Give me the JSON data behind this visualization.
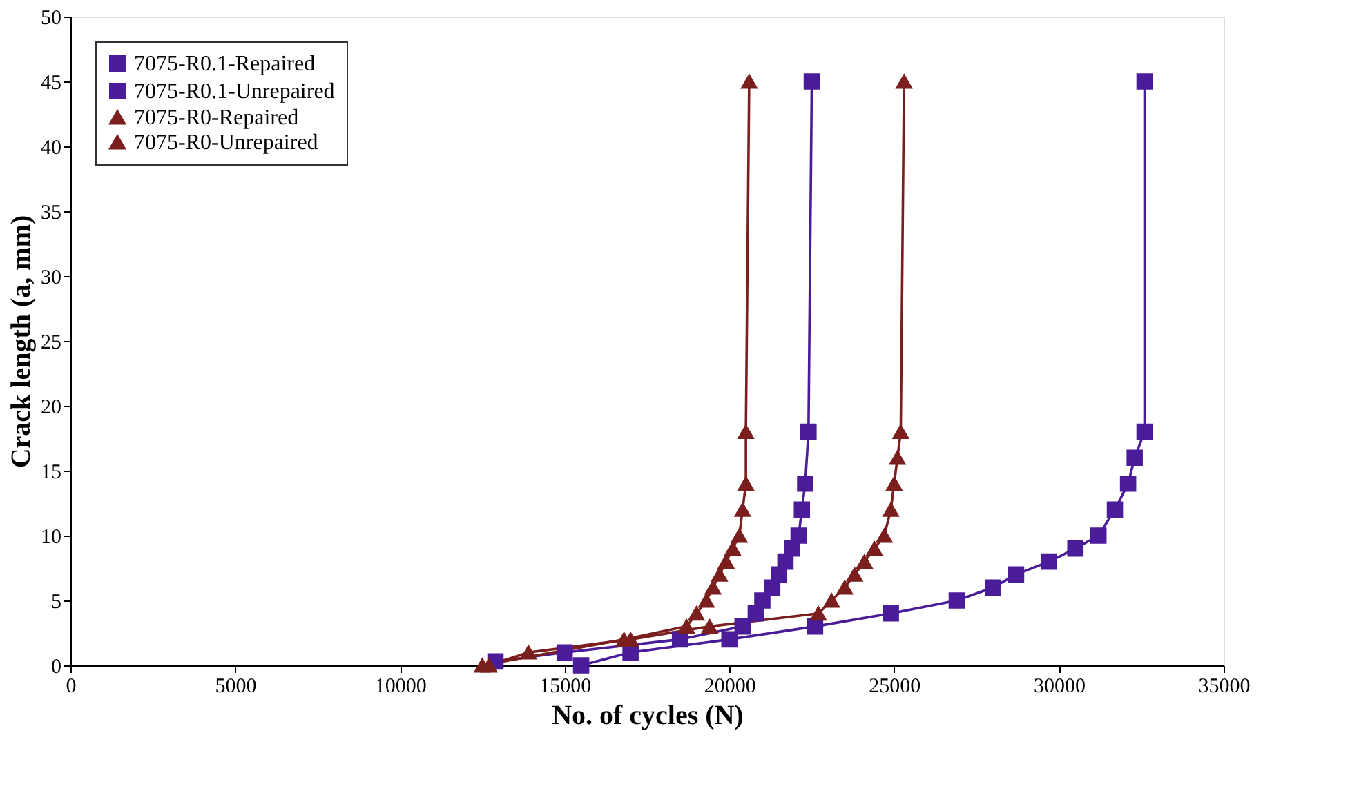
{
  "chart_data": {
    "type": "line",
    "xlabel": "No. of cycles (N)",
    "ylabel": "Crack length (a, mm)",
    "xlim": [
      0,
      35000
    ],
    "xticks": [
      0,
      5000,
      10000,
      15000,
      20000,
      25000,
      30000,
      35000
    ],
    "ylim": [
      0,
      50
    ],
    "yticks": [
      0,
      5,
      10,
      15,
      20,
      25,
      30,
      35,
      40,
      45,
      50
    ],
    "grid": false,
    "legend": "top left",
    "line_style": "solid",
    "series": [
      {
        "name": "7075-R0.1-Repaired",
        "color": "#4b1c9a",
        "marker": "square",
        "x": [
          15500,
          17000,
          20000,
          22600,
          24900,
          26900,
          28000,
          28700,
          29700,
          30500,
          31200,
          31700,
          32100,
          32300,
          32600,
          32600
        ],
        "values": [
          0,
          1,
          2,
          3,
          4,
          5,
          6,
          7,
          8,
          9,
          10,
          12,
          14,
          16,
          18,
          45
        ]
      },
      {
        "name": "7075-R0.1-Unrepaired",
        "color": "#4b1c9a",
        "marker": "square",
        "x": [
          12900,
          15000,
          18500,
          20400,
          20800,
          21000,
          21300,
          21500,
          21700,
          21900,
          22100,
          22200,
          22300,
          22400,
          22500
        ],
        "values": [
          0.3,
          1,
          2,
          3,
          4,
          5,
          6,
          7,
          8,
          9,
          10,
          12,
          14,
          18,
          45
        ]
      },
      {
        "name": "7075-R0-Repaired",
        "color": "#7a1e1e",
        "marker": "triangle",
        "x": [
          12700,
          13900,
          17000,
          19400,
          22700,
          23100,
          23500,
          23800,
          24100,
          24400,
          24700,
          24900,
          25000,
          25100,
          25200,
          25300
        ],
        "values": [
          0,
          1,
          2,
          3,
          4,
          5,
          6,
          7,
          8,
          9,
          10,
          12,
          14,
          16,
          18,
          45
        ]
      },
      {
        "name": "7075-R0-Unrepaired",
        "color": "#7a1e1e",
        "marker": "triangle",
        "x": [
          12500,
          16800,
          18700,
          19000,
          19300,
          19500,
          19700,
          19900,
          20100,
          20300,
          20400,
          20500,
          20500,
          20600
        ],
        "values": [
          0,
          2,
          3,
          4,
          5,
          6,
          7,
          8,
          9,
          10,
          12,
          14,
          18,
          45
        ]
      }
    ]
  }
}
